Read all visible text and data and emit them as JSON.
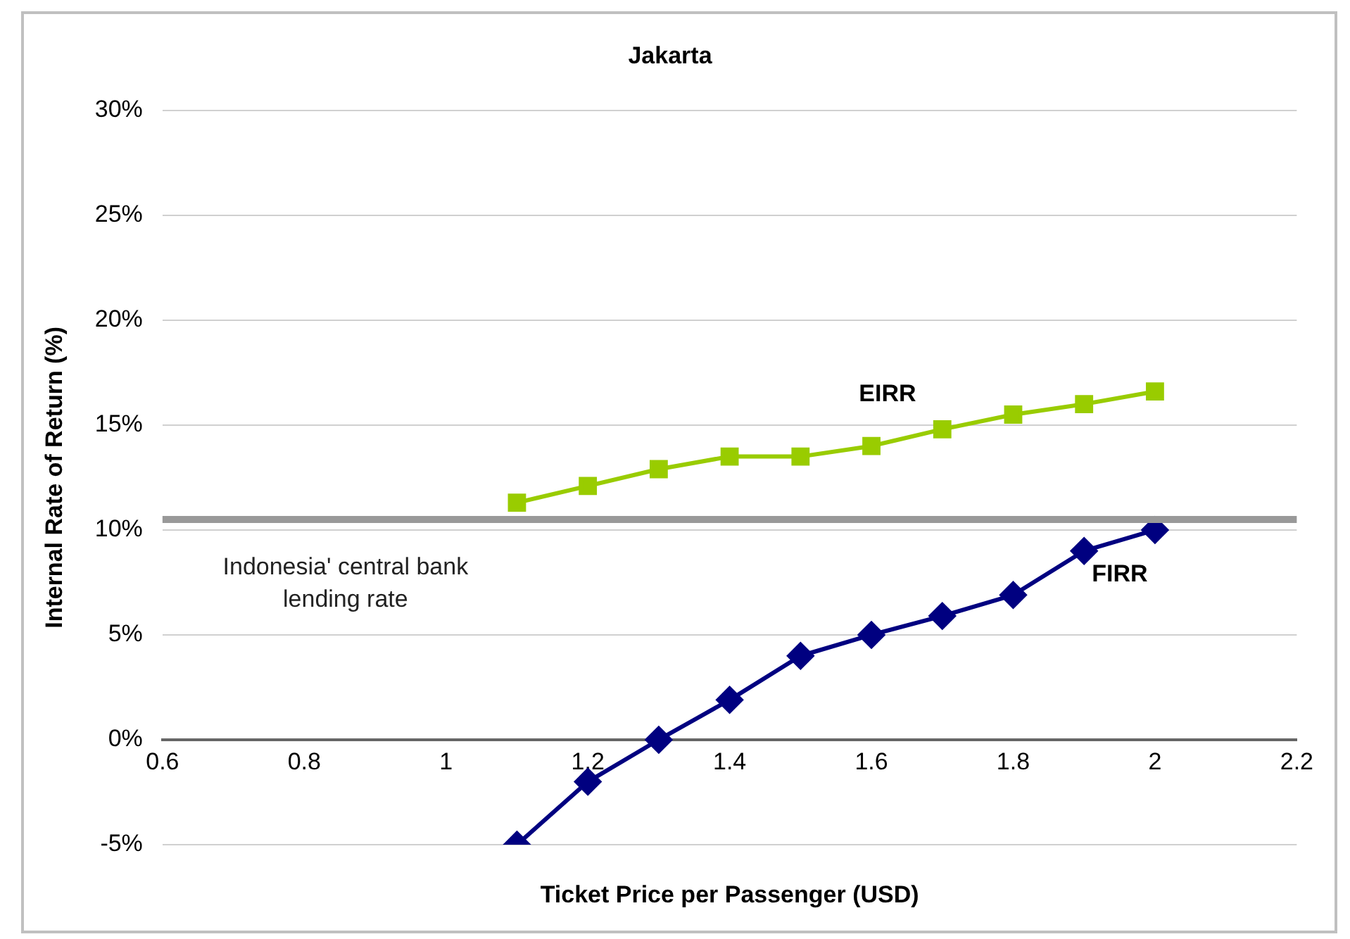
{
  "chart_data": {
    "type": "line",
    "title": "Jakarta",
    "xlabel": "Ticket Price per Passenger (USD)",
    "ylabel": "Internal Rate of Return (%)",
    "xlim": [
      0.6,
      2.2
    ],
    "xticks": [
      0.6,
      0.8,
      1,
      1.2,
      1.4,
      1.6,
      1.8,
      2,
      2.2
    ],
    "ylim": [
      -5,
      30
    ],
    "yticks": [
      {
        "value": -5,
        "label": "-5%"
      },
      {
        "value": 0,
        "label": "0%"
      },
      {
        "value": 5,
        "label": "5%"
      },
      {
        "value": 10,
        "label": "10%"
      },
      {
        "value": 15,
        "label": "15%"
      },
      {
        "value": 20,
        "label": "20%"
      },
      {
        "value": 25,
        "label": "25%"
      },
      {
        "value": 30,
        "label": "30%"
      }
    ],
    "x": [
      1.1,
      1.2,
      1.3,
      1.4,
      1.5,
      1.6,
      1.7,
      1.8,
      1.9,
      2.0
    ],
    "series": [
      {
        "name": "EIRR",
        "color": "#99cc00",
        "marker": "square",
        "values": [
          11.3,
          12.1,
          12.9,
          13.5,
          13.5,
          14.0,
          14.8,
          15.5,
          16.0,
          16.6
        ]
      },
      {
        "name": "FIRR",
        "color": "#000080",
        "marker": "diamond",
        "values": [
          -5.0,
          -2.0,
          0.0,
          1.9,
          4.0,
          5.0,
          5.9,
          6.9,
          9.0,
          10.0
        ]
      }
    ],
    "ref_lines": [
      {
        "axis": "y",
        "value": 10.5,
        "label": "Indonesia' central bank lending rate",
        "color": "#999999"
      }
    ],
    "grid": "y",
    "legend": false,
    "line_style": "solid"
  }
}
